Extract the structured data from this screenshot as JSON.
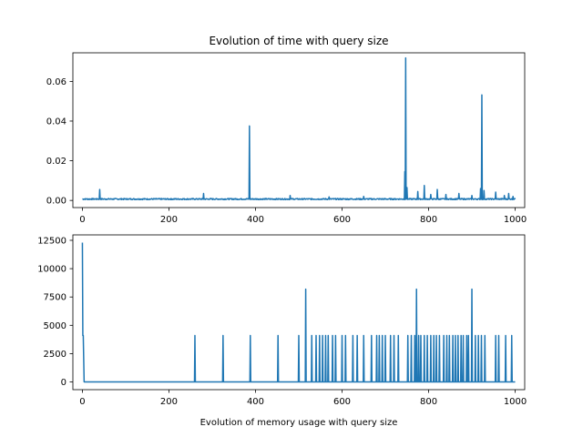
{
  "chart_data": [
    {
      "type": "line",
      "title": "Evolution of time with query size",
      "xlabel": "",
      "ylabel": "",
      "xlim": [
        -22,
        1022
      ],
      "ylim": [
        -0.0036,
        0.0744
      ],
      "x_ticks": [
        0,
        200,
        400,
        600,
        800,
        1000
      ],
      "x_tick_labels": [
        "0",
        "200",
        "400",
        "600",
        "800",
        "1000"
      ],
      "y_ticks": [
        0.0,
        0.02,
        0.04,
        0.06
      ],
      "y_tick_labels": [
        "0.00",
        "0.02",
        "0.04",
        "0.06"
      ],
      "grid": false,
      "color": "#1f77b4",
      "baseline": 0.0007,
      "spikes": [
        {
          "x": 40,
          "y": 0.0055
        },
        {
          "x": 280,
          "y": 0.0035
        },
        {
          "x": 386,
          "y": 0.0375
        },
        {
          "x": 480,
          "y": 0.0025
        },
        {
          "x": 570,
          "y": 0.0018
        },
        {
          "x": 650,
          "y": 0.002
        },
        {
          "x": 745,
          "y": 0.0145
        },
        {
          "x": 747,
          "y": 0.0718
        },
        {
          "x": 750,
          "y": 0.0065
        },
        {
          "x": 775,
          "y": 0.0045
        },
        {
          "x": 790,
          "y": 0.0075
        },
        {
          "x": 805,
          "y": 0.003
        },
        {
          "x": 820,
          "y": 0.0055
        },
        {
          "x": 840,
          "y": 0.003
        },
        {
          "x": 870,
          "y": 0.0035
        },
        {
          "x": 900,
          "y": 0.0025
        },
        {
          "x": 920,
          "y": 0.006
        },
        {
          "x": 923,
          "y": 0.0532
        },
        {
          "x": 928,
          "y": 0.005
        },
        {
          "x": 955,
          "y": 0.0042
        },
        {
          "x": 975,
          "y": 0.0025
        },
        {
          "x": 985,
          "y": 0.0035
        },
        {
          "x": 995,
          "y": 0.002
        }
      ]
    },
    {
      "type": "line",
      "title": "",
      "xlabel": "Evolution of memory usage with query size",
      "ylabel": "",
      "xlim": [
        -22,
        1022
      ],
      "ylim": [
        -680,
        12980
      ],
      "x_ticks": [
        0,
        200,
        400,
        600,
        800,
        1000
      ],
      "x_tick_labels": [
        "0",
        "200",
        "400",
        "600",
        "800",
        "1000"
      ],
      "y_ticks": [
        0,
        2500,
        5000,
        7500,
        10000,
        12500
      ],
      "y_tick_labels": [
        "0",
        "2500",
        "5000",
        "7500",
        "10000",
        "12500"
      ],
      "grid": false,
      "color": "#1f77b4",
      "start_points": [
        {
          "x": 0,
          "y": 12300
        },
        {
          "x": 1,
          "y": 4096
        },
        {
          "x": 2,
          "y": 4096
        },
        {
          "x": 4,
          "y": 0
        }
      ],
      "end_x": 1000,
      "spikes": [
        {
          "x": 260,
          "y": 4096
        },
        {
          "x": 325,
          "y": 4096
        },
        {
          "x": 388,
          "y": 4096
        },
        {
          "x": 452,
          "y": 4096
        },
        {
          "x": 500,
          "y": 4096
        },
        {
          "x": 516,
          "y": 8192
        },
        {
          "x": 530,
          "y": 4096
        },
        {
          "x": 540,
          "y": 4096
        },
        {
          "x": 548,
          "y": 4096
        },
        {
          "x": 555,
          "y": 4096
        },
        {
          "x": 562,
          "y": 4096
        },
        {
          "x": 568,
          "y": 4096
        },
        {
          "x": 578,
          "y": 4096
        },
        {
          "x": 585,
          "y": 4096
        },
        {
          "x": 600,
          "y": 4096
        },
        {
          "x": 608,
          "y": 4096
        },
        {
          "x": 625,
          "y": 4096
        },
        {
          "x": 635,
          "y": 4096
        },
        {
          "x": 650,
          "y": 4096
        },
        {
          "x": 668,
          "y": 4096
        },
        {
          "x": 680,
          "y": 4096
        },
        {
          "x": 686,
          "y": 4096
        },
        {
          "x": 693,
          "y": 4096
        },
        {
          "x": 700,
          "y": 4096
        },
        {
          "x": 712,
          "y": 4096
        },
        {
          "x": 720,
          "y": 4096
        },
        {
          "x": 730,
          "y": 4096
        },
        {
          "x": 752,
          "y": 4096
        },
        {
          "x": 760,
          "y": 4096
        },
        {
          "x": 768,
          "y": 4096
        },
        {
          "x": 772,
          "y": 8192
        },
        {
          "x": 777,
          "y": 4096
        },
        {
          "x": 782,
          "y": 4096
        },
        {
          "x": 790,
          "y": 4096
        },
        {
          "x": 797,
          "y": 4096
        },
        {
          "x": 805,
          "y": 4096
        },
        {
          "x": 812,
          "y": 4096
        },
        {
          "x": 818,
          "y": 4096
        },
        {
          "x": 825,
          "y": 4096
        },
        {
          "x": 835,
          "y": 4096
        },
        {
          "x": 842,
          "y": 4096
        },
        {
          "x": 848,
          "y": 4096
        },
        {
          "x": 856,
          "y": 4096
        },
        {
          "x": 862,
          "y": 4096
        },
        {
          "x": 868,
          "y": 4096
        },
        {
          "x": 875,
          "y": 4096
        },
        {
          "x": 880,
          "y": 4096
        },
        {
          "x": 888,
          "y": 4096
        },
        {
          "x": 892,
          "y": 4096
        },
        {
          "x": 900,
          "y": 8192
        },
        {
          "x": 908,
          "y": 4096
        },
        {
          "x": 915,
          "y": 4096
        },
        {
          "x": 922,
          "y": 4096
        },
        {
          "x": 930,
          "y": 4096
        },
        {
          "x": 955,
          "y": 4096
        },
        {
          "x": 962,
          "y": 4096
        },
        {
          "x": 978,
          "y": 4096
        },
        {
          "x": 992,
          "y": 4096
        }
      ]
    }
  ]
}
